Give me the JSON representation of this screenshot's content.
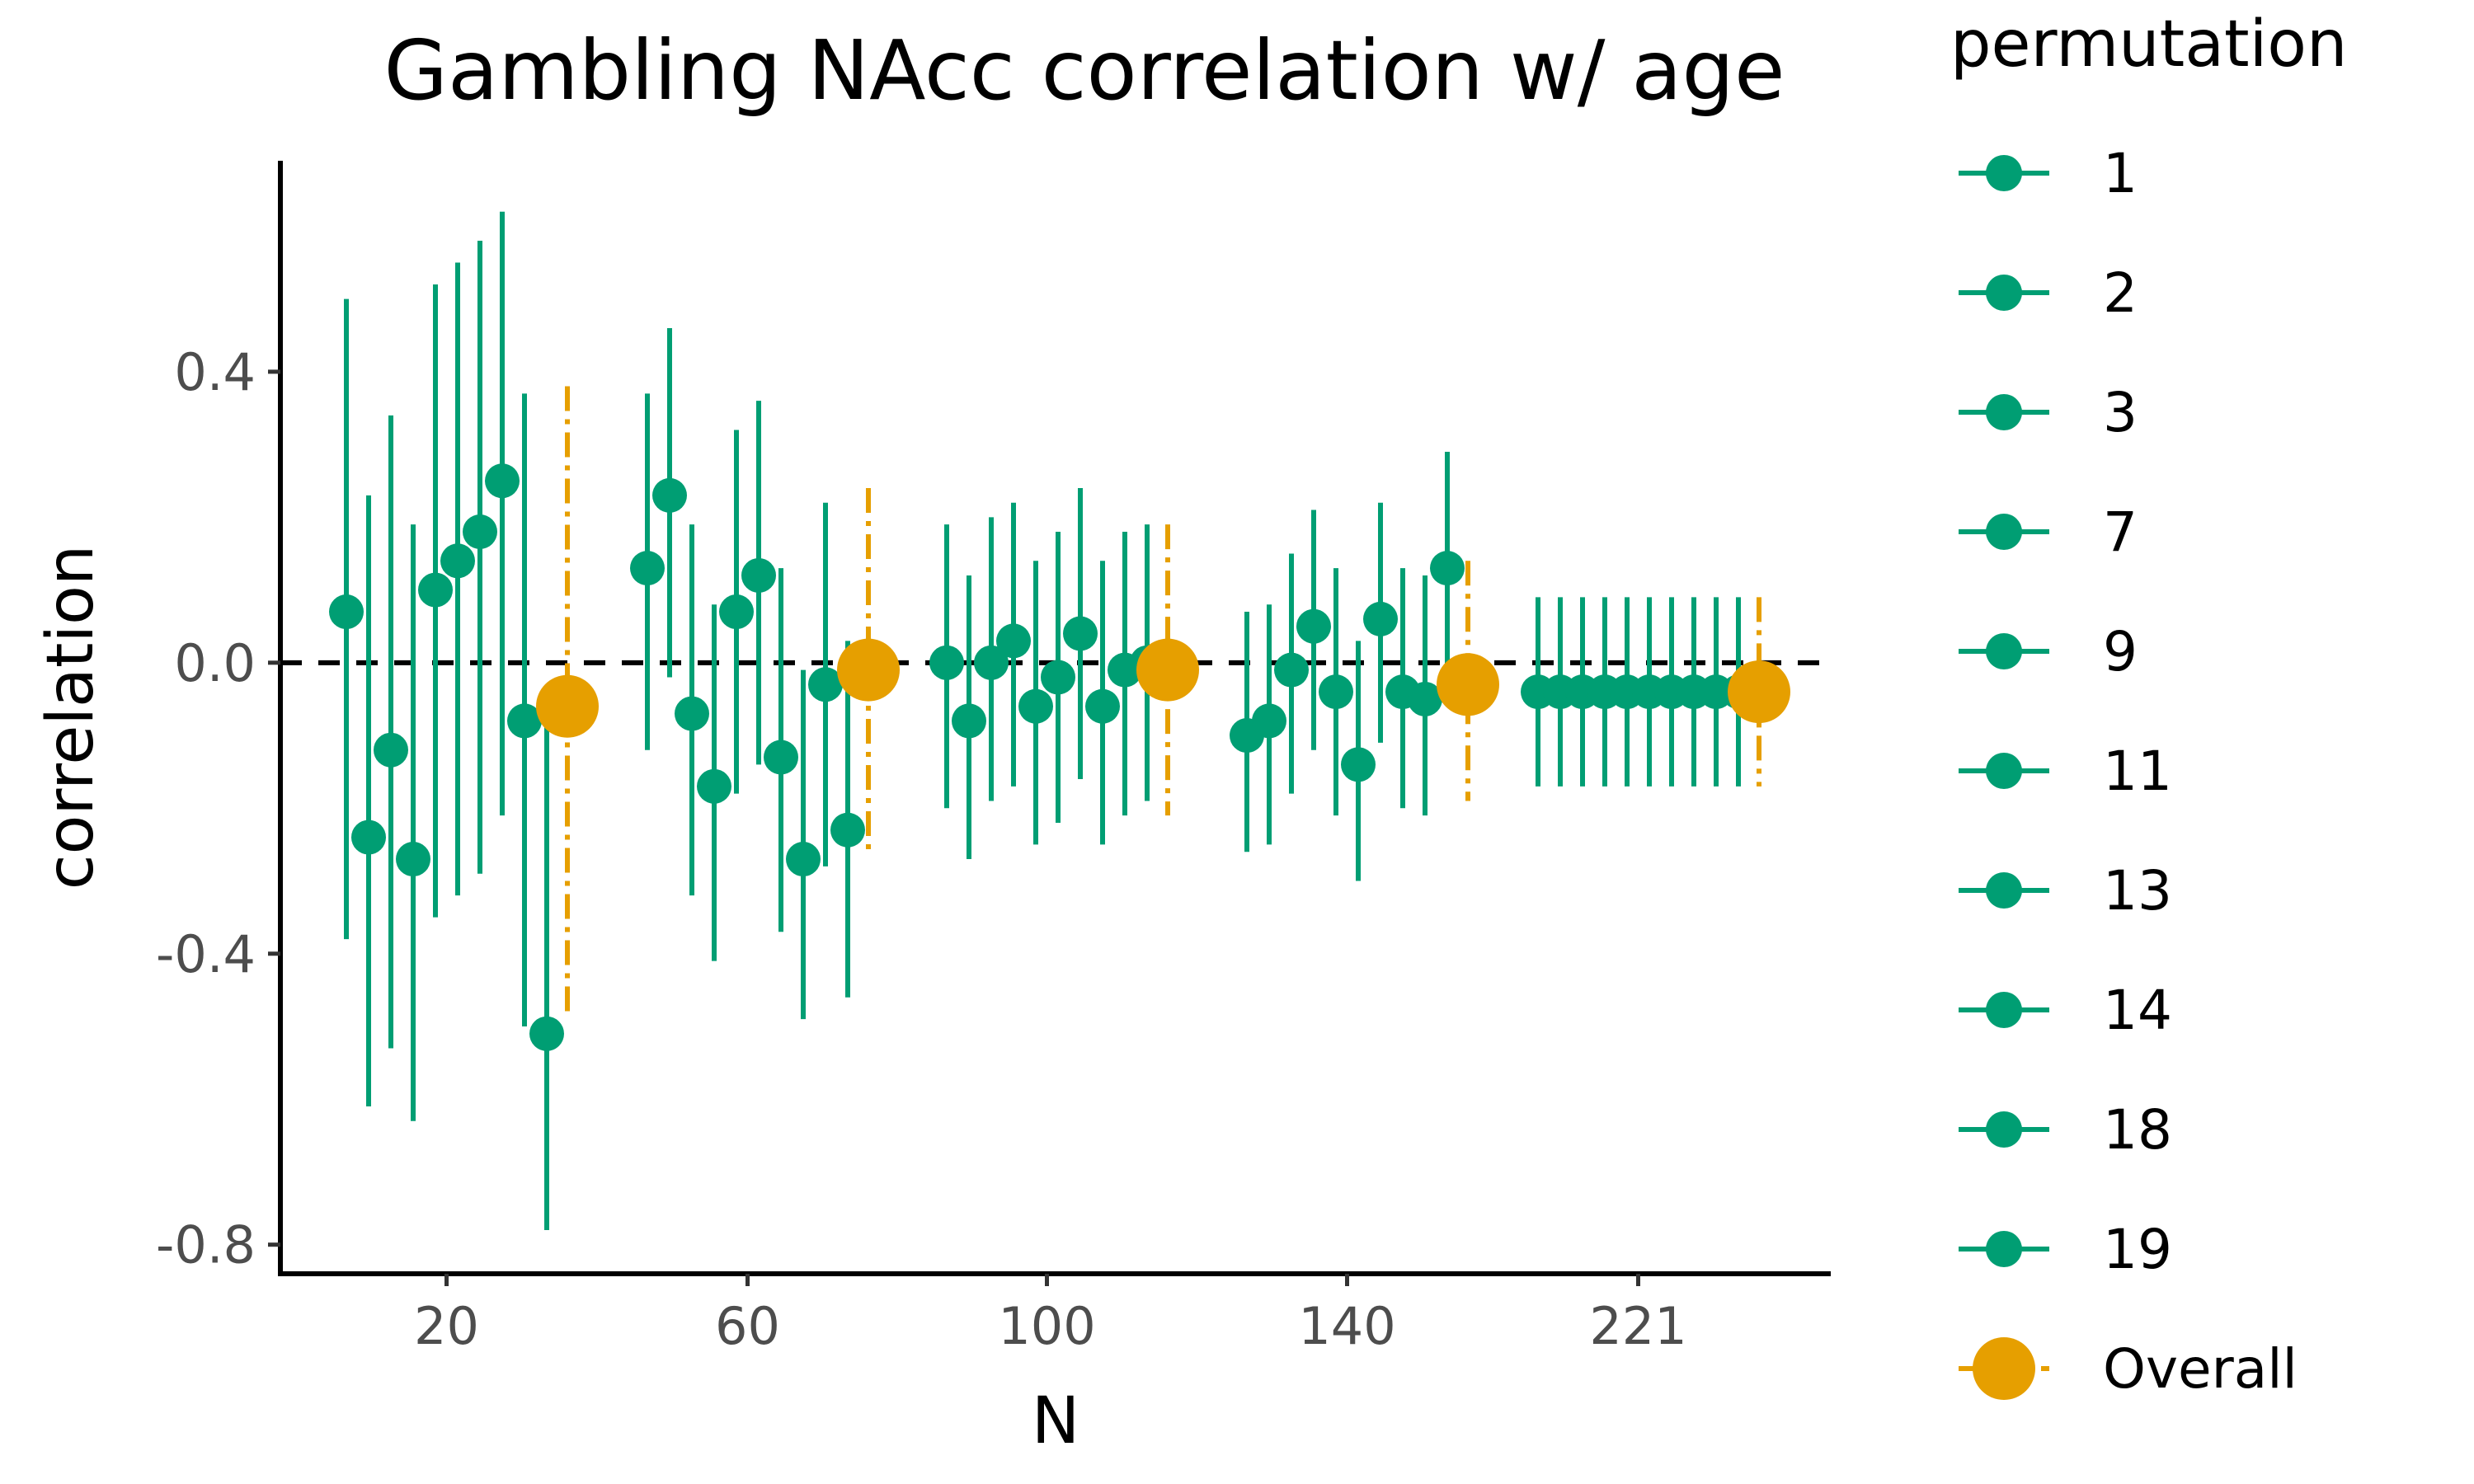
{
  "chart_data": {
    "type": "scatter",
    "title": "Gambling NAcc correlation w/ age",
    "xlabel": "N",
    "ylabel": "correlation",
    "x_tick_labels": [
      "20",
      "60",
      "100",
      "140",
      "221"
    ],
    "y_ticks": [
      0.4,
      0.0,
      -0.4,
      -0.8
    ],
    "y_tick_labels": [
      "0.4",
      "0.0",
      "-0.4",
      "-0.8"
    ],
    "ylim": [
      -0.84,
      0.69
    ],
    "reference_line": 0.0,
    "legend": {
      "title": "permutation",
      "position": "right",
      "entries": [
        "1",
        "2",
        "3",
        "7",
        "9",
        "11",
        "13",
        "14",
        "18",
        "19",
        "Overall"
      ]
    },
    "colors": {
      "permutation": "#009e73",
      "overall": "#e69f00",
      "reference": "#000000"
    },
    "groups": [
      {
        "n": "20",
        "permutations": [
          {
            "y": 0.07,
            "lo": -0.38,
            "hi": 0.5
          },
          {
            "y": -0.24,
            "lo": -0.61,
            "hi": 0.23
          },
          {
            "y": -0.12,
            "lo": -0.53,
            "hi": 0.34
          },
          {
            "y": -0.27,
            "lo": -0.63,
            "hi": 0.19
          },
          {
            "y": 0.1,
            "lo": -0.35,
            "hi": 0.52
          },
          {
            "y": 0.14,
            "lo": -0.32,
            "hi": 0.55
          },
          {
            "y": 0.18,
            "lo": -0.29,
            "hi": 0.58
          },
          {
            "y": 0.25,
            "lo": -0.21,
            "hi": 0.62
          },
          {
            "y": -0.08,
            "lo": -0.5,
            "hi": 0.37
          },
          {
            "y": -0.51,
            "lo": -0.78,
            "hi": -0.08
          }
        ],
        "overall": {
          "y": -0.06,
          "lo": -0.48,
          "hi": 0.38
        }
      },
      {
        "n": "60",
        "permutations": [
          {
            "y": 0.13,
            "lo": -0.12,
            "hi": 0.37
          },
          {
            "y": 0.23,
            "lo": -0.02,
            "hi": 0.46
          },
          {
            "y": -0.07,
            "lo": -0.32,
            "hi": 0.19
          },
          {
            "y": -0.17,
            "lo": -0.41,
            "hi": 0.08
          },
          {
            "y": 0.07,
            "lo": -0.18,
            "hi": 0.32
          },
          {
            "y": 0.12,
            "lo": -0.14,
            "hi": 0.36
          },
          {
            "y": -0.13,
            "lo": -0.37,
            "hi": 0.13
          },
          {
            "y": -0.27,
            "lo": -0.49,
            "hi": -0.01
          },
          {
            "y": -0.03,
            "lo": -0.28,
            "hi": 0.22
          },
          {
            "y": -0.23,
            "lo": -0.46,
            "hi": 0.03
          }
        ],
        "overall": {
          "y": -0.01,
          "lo": -0.26,
          "hi": 0.24
        }
      },
      {
        "n": "100",
        "permutations": [
          {
            "y": 0.0,
            "lo": -0.2,
            "hi": 0.19
          },
          {
            "y": -0.08,
            "lo": -0.27,
            "hi": 0.12
          },
          {
            "y": 0.0,
            "lo": -0.19,
            "hi": 0.2
          },
          {
            "y": 0.03,
            "lo": -0.17,
            "hi": 0.22
          },
          {
            "y": -0.06,
            "lo": -0.25,
            "hi": 0.14
          },
          {
            "y": -0.02,
            "lo": -0.22,
            "hi": 0.18
          },
          {
            "y": 0.04,
            "lo": -0.16,
            "hi": 0.24
          },
          {
            "y": -0.06,
            "lo": -0.25,
            "hi": 0.14
          },
          {
            "y": -0.01,
            "lo": -0.21,
            "hi": 0.18
          },
          {
            "y": 0.0,
            "lo": -0.19,
            "hi": 0.19
          }
        ],
        "overall": {
          "y": -0.01,
          "lo": -0.21,
          "hi": 0.19
        }
      },
      {
        "n": "140",
        "permutations": [
          {
            "y": -0.1,
            "lo": -0.26,
            "hi": 0.07
          },
          {
            "y": -0.08,
            "lo": -0.25,
            "hi": 0.08
          },
          {
            "y": -0.01,
            "lo": -0.18,
            "hi": 0.15
          },
          {
            "y": 0.05,
            "lo": -0.12,
            "hi": 0.21
          },
          {
            "y": -0.04,
            "lo": -0.21,
            "hi": 0.13
          },
          {
            "y": -0.14,
            "lo": -0.3,
            "hi": 0.03
          },
          {
            "y": 0.06,
            "lo": -0.11,
            "hi": 0.22
          },
          {
            "y": -0.04,
            "lo": -0.2,
            "hi": 0.13
          },
          {
            "y": -0.05,
            "lo": -0.21,
            "hi": 0.12
          },
          {
            "y": 0.13,
            "lo": -0.04,
            "hi": 0.29
          }
        ],
        "overall": {
          "y": -0.03,
          "lo": -0.19,
          "hi": 0.14
        }
      },
      {
        "n": "221",
        "permutations": [
          {
            "y": -0.04,
            "lo": -0.17,
            "hi": 0.09
          },
          {
            "y": -0.04,
            "lo": -0.17,
            "hi": 0.09
          },
          {
            "y": -0.04,
            "lo": -0.17,
            "hi": 0.09
          },
          {
            "y": -0.04,
            "lo": -0.17,
            "hi": 0.09
          },
          {
            "y": -0.04,
            "lo": -0.17,
            "hi": 0.09
          },
          {
            "y": -0.04,
            "lo": -0.17,
            "hi": 0.09
          },
          {
            "y": -0.04,
            "lo": -0.17,
            "hi": 0.09
          },
          {
            "y": -0.04,
            "lo": -0.17,
            "hi": 0.09
          },
          {
            "y": -0.04,
            "lo": -0.17,
            "hi": 0.09
          },
          {
            "y": -0.04,
            "lo": -0.17,
            "hi": 0.09
          }
        ],
        "overall": {
          "y": -0.04,
          "lo": -0.17,
          "hi": 0.09
        }
      }
    ]
  }
}
